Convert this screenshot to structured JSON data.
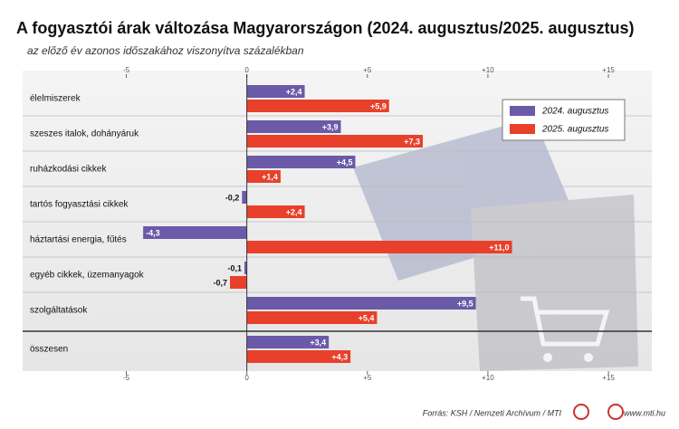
{
  "chart_data": {
    "type": "barh",
    "title": "A fogyasztói árak változása Magyarországon (2024. augusztus/2025. augusztus)",
    "subtitle": "az előző év azonos időszakához viszonyítva százalékban",
    "categories": [
      "élelmiszerek",
      "szeszes italok, dohányáruk",
      "ruházkodási cikkek",
      "tartós fogyasztási cikkek",
      "háztartási energia, fűtés",
      "egyéb cikkek, üzemanyagok",
      "szolgáltatások",
      "összesen"
    ],
    "series": [
      {
        "name": "2024. augusztus",
        "color": "#6a5aa8",
        "values": [
          2.4,
          3.9,
          4.5,
          -0.2,
          -4.3,
          -0.1,
          9.5,
          3.4
        ],
        "value_labels": [
          "+2,4",
          "+3,9",
          "+4,5",
          "-0,2",
          "-4,3",
          "-0,1",
          "+9,5",
          "+3,4"
        ]
      },
      {
        "name": "2025. augusztus",
        "color": "#e8402a",
        "values": [
          5.9,
          7.3,
          1.4,
          2.4,
          11.0,
          -0.7,
          5.4,
          4.3
        ],
        "value_labels": [
          "+5,9",
          "+7,3",
          "+1,4",
          "+2,4",
          "+11,0",
          "-0,7",
          "+5,4",
          "+4,3"
        ]
      }
    ],
    "xlim": [
      -9.3,
      16.8
    ],
    "xticks": [
      -5,
      0,
      {
        "value": 5,
        "label": "+5"
      },
      {
        "value": 10,
        "label": "+10"
      },
      {
        "value": 15,
        "label": "+15"
      }
    ],
    "legend": "upper right",
    "source": "Forrás: KSH / Nemzeti Archívum / MTI",
    "website": "www.mti.hu"
  }
}
